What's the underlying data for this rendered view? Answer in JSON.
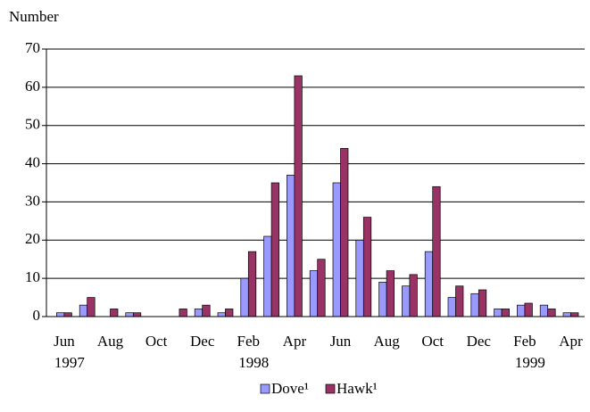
{
  "chart_data": {
    "type": "bar",
    "y_axis_label": "Number",
    "categories": [
      "Jun",
      null,
      "Aug",
      null,
      "Oct",
      null,
      "Dec",
      null,
      "Feb",
      null,
      "Apr",
      null,
      "Jun",
      null,
      "Aug",
      null,
      "Oct",
      null,
      "Dec",
      null,
      "Feb",
      null,
      "Apr"
    ],
    "category_years": [
      "1997",
      null,
      null,
      null,
      null,
      null,
      null,
      null,
      "1998",
      null,
      null,
      null,
      null,
      null,
      null,
      null,
      null,
      null,
      null,
      null,
      "1999",
      null,
      null
    ],
    "series": [
      {
        "name": "Dove¹",
        "color": "#9999ff",
        "values": [
          1,
          3,
          0,
          1,
          0,
          0,
          2,
          1,
          10,
          21,
          37,
          12,
          35,
          20,
          9,
          8,
          17,
          5,
          6,
          2,
          3,
          3,
          1
        ]
      },
      {
        "name": "Hawk¹",
        "color": "#993366",
        "values": [
          1,
          5,
          2,
          1,
          0,
          2,
          3,
          2,
          17,
          35,
          63,
          15,
          44,
          26,
          12,
          11,
          34,
          8,
          7,
          2,
          3.5,
          2,
          1
        ]
      }
    ],
    "ylim": [
      0,
      70
    ],
    "yticks": [
      0,
      10,
      20,
      30,
      40,
      50,
      60,
      70
    ],
    "grid": true,
    "legend": "bottom"
  }
}
